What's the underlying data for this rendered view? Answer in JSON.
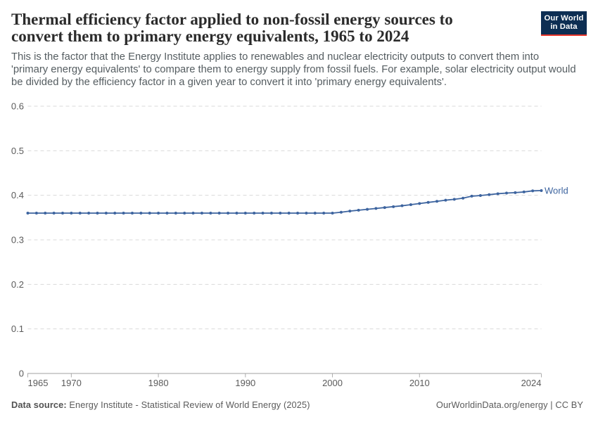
{
  "header": {
    "title": "Thermal efficiency factor applied to non-fossil energy sources to convert them to primary energy equivalents, 1965 to 2024",
    "title_lines": [
      "Thermal efficiency factor applied to non-fossil energy sources to",
      "convert them to primary energy equivalents, 1965 to 2024"
    ],
    "logo": {
      "line1": "Our World",
      "line2": "in Data",
      "bg_color": "#0d2e53",
      "bar_color": "#e8352a"
    }
  },
  "subtitle": {
    "text": "This is the factor that the Energy Institute applies to renewables and nuclear electricity outputs to convert them into 'primary energy equivalents' to compare them to energy supply from fossil fuels. For example, solar electricity output would be divided by the efficiency factor in a given year to convert it into 'primary energy equivalents'.",
    "lines": [
      "This is the factor that the Energy Institute applies to renewables and nuclear electricity outputs to convert them into",
      "'primary energy equivalents' to compare them to energy supply from fossil fuels. For example, solar electricity output would",
      "be divided by the efficiency factor in a given year to convert it into 'primary energy equivalents'."
    ]
  },
  "chart_data": {
    "type": "line",
    "title": "Thermal efficiency factor applied to non-fossil energy sources to convert them to primary energy equivalents, 1965 to 2024",
    "xlabel": "",
    "ylabel": "",
    "xlim": [
      1965,
      2024
    ],
    "ylim": [
      0,
      0.6
    ],
    "grid": "horizontal-dashed",
    "legend_position": "end-of-line",
    "yticks": [
      0,
      0.1,
      0.2,
      0.3,
      0.4,
      0.5,
      0.6
    ],
    "ytick_labels": [
      "0",
      "0.1",
      "0.2",
      "0.3",
      "0.4",
      "0.5",
      "0.6"
    ],
    "xticks": [
      1965,
      1970,
      1980,
      1990,
      2000,
      2010,
      2024
    ],
    "xtick_labels": [
      "1965",
      "1970",
      "1980",
      "1990",
      "2000",
      "2010",
      "2024"
    ],
    "series": [
      {
        "name": "World",
        "color": "#3d649f",
        "marker": "dot",
        "x": [
          1965,
          1966,
          1967,
          1968,
          1969,
          1970,
          1971,
          1972,
          1973,
          1974,
          1975,
          1976,
          1977,
          1978,
          1979,
          1980,
          1981,
          1982,
          1983,
          1984,
          1985,
          1986,
          1987,
          1988,
          1989,
          1990,
          1991,
          1992,
          1993,
          1994,
          1995,
          1996,
          1997,
          1998,
          1999,
          2000,
          2001,
          2002,
          2003,
          2004,
          2005,
          2006,
          2007,
          2008,
          2009,
          2010,
          2011,
          2012,
          2013,
          2014,
          2015,
          2016,
          2017,
          2018,
          2019,
          2020,
          2021,
          2022,
          2023,
          2024
        ],
        "values": [
          0.36,
          0.36,
          0.36,
          0.36,
          0.36,
          0.36,
          0.36,
          0.36,
          0.36,
          0.36,
          0.36,
          0.36,
          0.36,
          0.36,
          0.36,
          0.36,
          0.36,
          0.36,
          0.36,
          0.36,
          0.36,
          0.36,
          0.36,
          0.36,
          0.36,
          0.36,
          0.36,
          0.36,
          0.36,
          0.36,
          0.36,
          0.36,
          0.36,
          0.36,
          0.36,
          0.36,
          0.362,
          0.3645,
          0.3665,
          0.3685,
          0.3705,
          0.3725,
          0.3745,
          0.3765,
          0.379,
          0.3815,
          0.384,
          0.3865,
          0.389,
          0.391,
          0.3935,
          0.398,
          0.3995,
          0.4015,
          0.4035,
          0.405,
          0.406,
          0.4075,
          0.41,
          0.4105
        ]
      }
    ]
  },
  "footer": {
    "source_label": "Data source:",
    "source_text": "Energy Institute - Statistical Review of World Energy (2025)",
    "right_text": "OurWorldinData.org/energy | CC BY"
  },
  "style": {
    "grid_color": "#dadada",
    "axis_color": "#a1a1a1",
    "tick_color": "#adadad",
    "tick_label_color": "#5b5b5b"
  }
}
